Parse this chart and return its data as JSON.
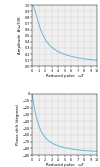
{
  "omega_max": 10,
  "amp_yticks": [
    0.0,
    0.1,
    0.2,
    0.3,
    0.4,
    0.5,
    0.6,
    0.7,
    0.8,
    0.9,
    1.0
  ],
  "phase_yticks": [
    0,
    -10,
    -20,
    -30,
    -40,
    -50,
    -60,
    -70,
    -80,
    -90
  ],
  "xticks": [
    0,
    1,
    2,
    3,
    4,
    5,
    6,
    7,
    8,
    9,
    10
  ],
  "xlabel": "Reduced pulse   ωT",
  "ylabel_amp": "Amplitude  A(ωT)/K",
  "ylabel_phase": "Phase shift (degrees)",
  "line_color": "#6ab8d8",
  "bg_color": "#f0f0f0",
  "grid_color": "#d0d0d0",
  "label_fontsize": 2.8,
  "tick_fontsize": 2.4
}
